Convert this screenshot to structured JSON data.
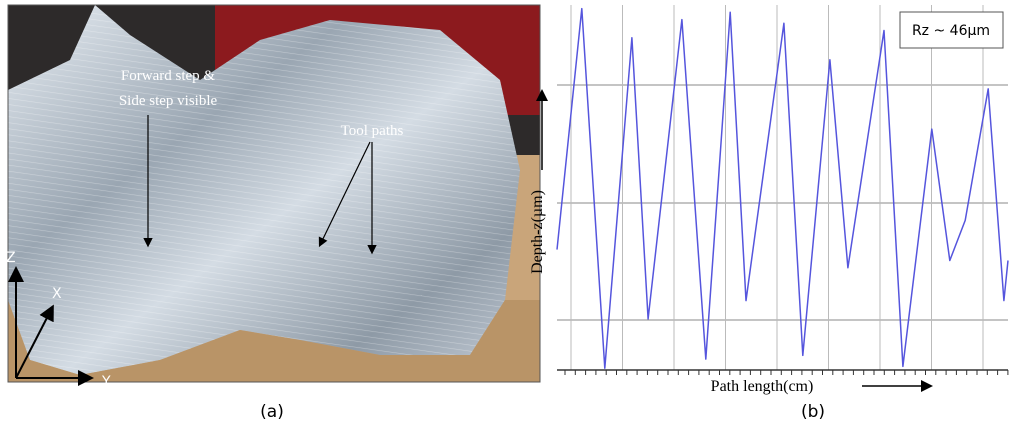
{
  "figure_a": {
    "annotations": [
      "Forward step &",
      "Side step visible",
      "Tool paths"
    ],
    "axis_labels": [
      "Z",
      "X",
      "Y"
    ],
    "caption": "(a)"
  },
  "chart_data": {
    "type": "line",
    "annotation": "Rz ~ 46µm",
    "xlabel": "Path length(cm)",
    "ylabel": "Depth-z(µm)",
    "caption": "(b)",
    "x": [
      0,
      5.5,
      10.6,
      16.6,
      20.2,
      27.7,
      33,
      38.4,
      41.9,
      50.3,
      54.5,
      60.5,
      64.5,
      72.5,
      76.7,
      83.1,
      87.1,
      90.5,
      95.6,
      99.1,
      100
    ],
    "values": [
      33,
      99,
      0.5,
      91,
      14,
      96,
      3,
      98,
      19,
      95,
      4,
      85,
      28,
      93,
      1,
      66,
      30,
      41,
      77,
      19,
      30
    ],
    "color": "#5555dd",
    "xlim": [
      0,
      100
    ],
    "ylim": [
      0,
      100
    ]
  }
}
